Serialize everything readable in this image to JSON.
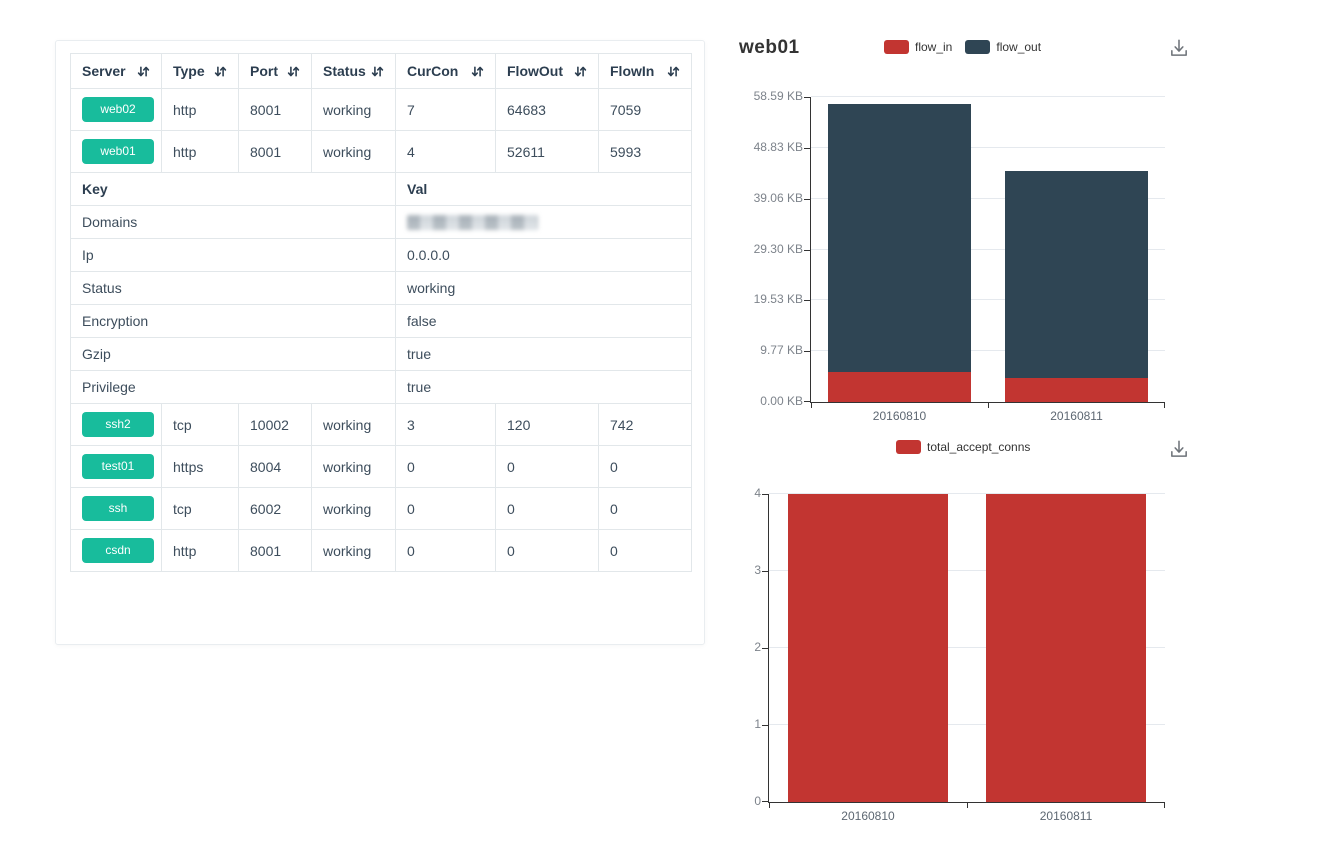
{
  "table": {
    "headers": [
      "Server",
      "Type",
      "Port",
      "Status",
      "CurCon",
      "FlowOut",
      "FlowIn"
    ],
    "servers_top": [
      {
        "name": "web02",
        "type": "http",
        "port": "8001",
        "status": "working",
        "curcon": "7",
        "flowout": "64683",
        "flowin": "7059"
      },
      {
        "name": "web01",
        "type": "http",
        "port": "8001",
        "status": "working",
        "curcon": "4",
        "flowout": "52611",
        "flowin": "5993"
      }
    ],
    "kv_header": {
      "key": "Key",
      "val": "Val"
    },
    "kv_rows": [
      {
        "key": "Domains",
        "val": "",
        "redacted": true
      },
      {
        "key": "Ip",
        "val": "0.0.0.0"
      },
      {
        "key": "Status",
        "val": "working"
      },
      {
        "key": "Encryption",
        "val": "false"
      },
      {
        "key": "Gzip",
        "val": "true"
      },
      {
        "key": "Privilege",
        "val": "true"
      }
    ],
    "servers_bottom": [
      {
        "name": "ssh2",
        "type": "tcp",
        "port": "10002",
        "status": "working",
        "curcon": "3",
        "flowout": "120",
        "flowin": "742"
      },
      {
        "name": "test01",
        "type": "https",
        "port": "8004",
        "status": "working",
        "curcon": "0",
        "flowout": "0",
        "flowin": "0"
      },
      {
        "name": "ssh",
        "type": "tcp",
        "port": "6002",
        "status": "working",
        "curcon": "0",
        "flowout": "0",
        "flowin": "0"
      },
      {
        "name": "csdn",
        "type": "http",
        "port": "8001",
        "status": "working",
        "curcon": "0",
        "flowout": "0",
        "flowin": "0"
      }
    ]
  },
  "colors": {
    "accent_green": "#18bc9c",
    "flow_in_red": "#c23531",
    "flow_out_dark": "#2f4554",
    "axis": "#333333",
    "gridline": "#e5e9ee"
  },
  "chart_data": [
    {
      "type": "bar",
      "stacked": true,
      "title": "web01",
      "categories": [
        "20160810",
        "20160811"
      ],
      "series": [
        {
          "name": "flow_in",
          "color": "#c23531",
          "values": [
            5993,
            4700
          ]
        },
        {
          "name": "flow_out",
          "color": "#2f4554",
          "values": [
            52611,
            40700
          ]
        }
      ],
      "ylim": [
        0,
        60000
      ],
      "y_tick_labels": [
        "0.00 KB",
        "9.77 KB",
        "19.53 KB",
        "29.30 KB",
        "39.06 KB",
        "48.83 KB",
        "58.59 KB"
      ],
      "xlabel": "",
      "ylabel": "",
      "legend_position": "top",
      "grid": true
    },
    {
      "type": "bar",
      "stacked": false,
      "title": "total_accept_conns",
      "categories": [
        "20160810",
        "20160811"
      ],
      "series": [
        {
          "name": "total_accept_conns",
          "color": "#c23531",
          "values": [
            4,
            4
          ]
        }
      ],
      "ylim": [
        0,
        4
      ],
      "y_tick_labels": [
        "0",
        "1",
        "2",
        "3",
        "4"
      ],
      "xlabel": "",
      "ylabel": "",
      "legend_position": "top",
      "grid": true
    }
  ]
}
